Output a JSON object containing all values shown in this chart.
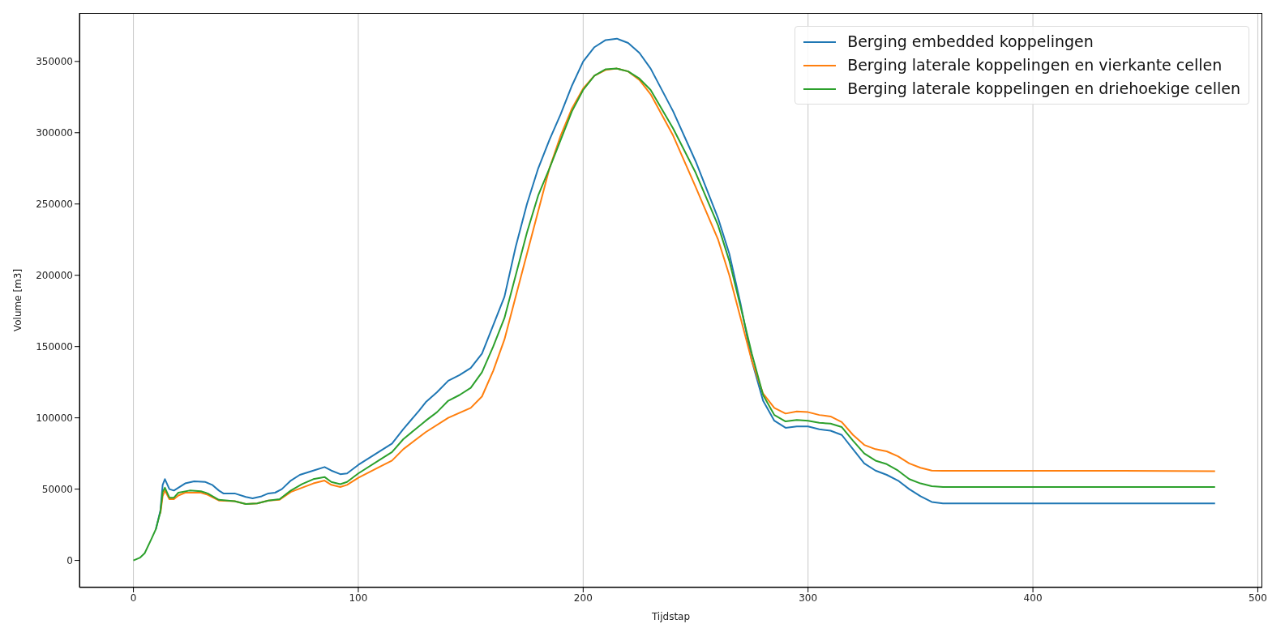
{
  "chart_data": {
    "type": "line",
    "xlabel": "Tijdstap",
    "ylabel": "Volume [m3]",
    "xlim": [
      -24,
      502
    ],
    "xticks": [
      0,
      100,
      200,
      300,
      400,
      500
    ],
    "ylim": [
      -19000,
      384000
    ],
    "yticks": [
      0,
      50000,
      100000,
      150000,
      200000,
      250000,
      300000,
      350000
    ],
    "grid": true,
    "legend": "top right",
    "marker": "none",
    "line_style": "solid",
    "series": [
      {
        "name": "Berging embedded koppelingen",
        "color": "#1f77b4",
        "x": [
          10,
          12,
          13,
          14,
          16,
          18,
          20,
          23,
          27,
          32,
          35,
          38,
          40,
          45,
          50,
          53,
          57,
          60,
          63,
          66,
          70,
          74,
          80,
          85,
          88,
          92,
          95,
          100,
          110,
          115,
          120,
          127,
          130,
          135,
          140,
          145,
          150,
          155,
          160,
          165,
          170,
          175,
          180,
          185,
          190,
          195,
          200,
          205,
          210,
          215,
          220,
          225,
          230,
          240,
          250,
          260,
          265,
          270,
          275,
          280,
          285,
          290,
          295,
          300,
          305,
          310,
          315,
          320,
          325,
          330,
          335,
          340,
          345,
          350,
          355,
          360,
          400,
          440,
          481
        ],
        "values": [
          22000,
          35000,
          53000,
          57000,
          50000,
          49000,
          51000,
          54000,
          55500,
          55000,
          53000,
          49000,
          47000,
          47000,
          44500,
          43500,
          45000,
          47000,
          47500,
          50000,
          56000,
          60000,
          63000,
          65500,
          63000,
          60500,
          61000,
          67000,
          77000,
          82000,
          92000,
          105000,
          111000,
          118000,
          126000,
          130000,
          135000,
          145000,
          165000,
          185000,
          220000,
          250000,
          275000,
          295000,
          313000,
          333000,
          350000,
          360000,
          365000,
          366000,
          363000,
          356000,
          345000,
          315000,
          280000,
          240000,
          215000,
          180000,
          140000,
          112000,
          98000,
          93000,
          94000,
          94000,
          92000,
          91000,
          88000,
          78000,
          68000,
          63000,
          60000,
          56000,
          50000,
          45000,
          41000,
          40000,
          40000,
          40000,
          40000
        ]
      },
      {
        "name": "Berging laterale koppelingen en vierkante cellen",
        "color": "#ff7f0e",
        "x": [
          12,
          13,
          14,
          16,
          18,
          20,
          23,
          30,
          33,
          38,
          45,
          50,
          55,
          60,
          65,
          70,
          75,
          80,
          85,
          88,
          92,
          95,
          100,
          110,
          115,
          120,
          130,
          140,
          150,
          155,
          160,
          165,
          170,
          175,
          180,
          185,
          190,
          195,
          200,
          205,
          210,
          215,
          220,
          225,
          230,
          240,
          250,
          260,
          265,
          270,
          275,
          280,
          285,
          290,
          295,
          300,
          305,
          310,
          315,
          320,
          325,
          330,
          335,
          340,
          345,
          350,
          355,
          360,
          400,
          440,
          481
        ],
        "values": [
          33000,
          45000,
          49000,
          43000,
          43000,
          45500,
          47500,
          47500,
          46000,
          42000,
          41500,
          39500,
          40000,
          42000,
          42500,
          48000,
          51000,
          54000,
          56000,
          53000,
          51500,
          53000,
          58000,
          66000,
          70000,
          78000,
          90000,
          100000,
          107000,
          115000,
          133000,
          155000,
          185000,
          215000,
          245000,
          275000,
          298000,
          317000,
          331000,
          340000,
          344000,
          345000,
          343000,
          337000,
          327000,
          298000,
          262000,
          225000,
          200000,
          170000,
          140000,
          117000,
          107000,
          103000,
          104500,
          104000,
          102000,
          101000,
          97000,
          88000,
          81000,
          78000,
          76500,
          73000,
          68000,
          65000,
          63000,
          62800,
          62800,
          62800,
          62500
        ]
      },
      {
        "name": "Berging laterale koppelingen en driehoekige cellen",
        "color": "#2ca02c",
        "x": [
          0,
          3,
          5,
          8,
          10,
          12,
          13,
          14,
          16,
          18,
          20,
          25,
          30,
          33,
          38,
          45,
          50,
          55,
          60,
          65,
          70,
          75,
          80,
          85,
          88,
          92,
          95,
          100,
          110,
          115,
          120,
          130,
          135,
          140,
          145,
          150,
          155,
          160,
          165,
          170,
          175,
          180,
          185,
          190,
          195,
          200,
          205,
          210,
          215,
          220,
          225,
          230,
          240,
          250,
          260,
          265,
          270,
          275,
          280,
          285,
          290,
          295,
          300,
          305,
          310,
          315,
          320,
          325,
          330,
          335,
          340,
          345,
          350,
          355,
          360,
          400,
          440,
          481
        ],
        "values": [
          0,
          2000,
          5000,
          15000,
          22000,
          34000,
          48000,
          51000,
          44000,
          44000,
          47500,
          49000,
          48500,
          47000,
          42500,
          41500,
          39500,
          40000,
          42000,
          43000,
          49000,
          53500,
          57000,
          58500,
          55000,
          53500,
          55000,
          61000,
          71000,
          76000,
          85000,
          98000,
          104000,
          112000,
          116000,
          121000,
          132000,
          150000,
          170000,
          200000,
          230000,
          256000,
          275000,
          295000,
          315000,
          330000,
          340000,
          344500,
          345000,
          343000,
          338000,
          330000,
          303000,
          272000,
          235000,
          210000,
          178000,
          145000,
          116000,
          102000,
          97500,
          98500,
          98000,
          96500,
          96000,
          93500,
          84000,
          75000,
          70000,
          67500,
          63000,
          57000,
          54000,
          52000,
          51500,
          51500,
          51500,
          51500
        ]
      }
    ]
  }
}
